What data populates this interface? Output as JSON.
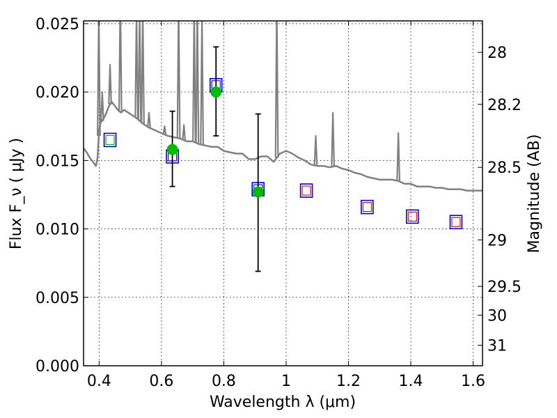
{
  "chart_data": {
    "type": "scatter",
    "xlabel": "Wavelength  λ (μm)",
    "ylabel_left": "Flux  F_ν  ( μJy )",
    "ylabel_right": "Magnitude (AB)",
    "xlim": [
      0.35,
      1.63
    ],
    "ylim": [
      0.0,
      0.0252
    ],
    "grid": true,
    "x_ticks": [
      0.4,
      0.6,
      0.8,
      1.0,
      1.2,
      1.4,
      1.6
    ],
    "x_tick_labels": [
      "0.4",
      "0.6",
      "0.8",
      "1",
      "1.2",
      "1.4",
      "1.6"
    ],
    "y_ticks": [
      0.0,
      0.005,
      0.01,
      0.015,
      0.02,
      0.025
    ],
    "y_tick_labels": [
      "0.000",
      "0.005",
      "0.010",
      "0.015",
      "0.020",
      "0.025"
    ],
    "right_ticks": [
      {
        "label": "28",
        "flux": 0.0229
      },
      {
        "label": "28.2",
        "flux": 0.0191
      },
      {
        "label": "28.5",
        "flux": 0.0145
      },
      {
        "label": "29",
        "flux": 0.0092
      },
      {
        "label": "29.5",
        "flux": 0.0058
      },
      {
        "label": "30",
        "flux": 0.0037
      },
      {
        "label": "31",
        "flux": 0.0015
      }
    ],
    "series": [
      {
        "kind": "template_spectrum",
        "color": "#808080",
        "x": [
          0.35,
          0.36,
          0.37,
          0.38,
          0.39,
          0.395,
          0.4,
          0.405,
          0.41,
          0.42,
          0.43,
          0.44,
          0.45,
          0.46,
          0.47,
          0.48,
          0.5,
          0.52,
          0.54,
          0.56,
          0.58,
          0.6,
          0.62,
          0.64,
          0.66,
          0.68,
          0.7,
          0.72,
          0.74,
          0.76,
          0.78,
          0.8,
          0.82,
          0.84,
          0.86,
          0.88,
          0.9,
          0.92,
          0.94,
          0.96,
          0.98,
          1.0,
          1.02,
          1.04,
          1.06,
          1.08,
          1.1,
          1.12,
          1.14,
          1.16,
          1.18,
          1.2,
          1.22,
          1.24,
          1.26,
          1.28,
          1.3,
          1.32,
          1.34,
          1.36,
          1.38,
          1.4,
          1.42,
          1.44,
          1.46,
          1.48,
          1.5,
          1.52,
          1.54,
          1.56,
          1.58,
          1.6,
          1.63
        ],
        "y": [
          0.0159,
          0.0156,
          0.0152,
          0.0149,
          0.0146,
          0.0152,
          0.0172,
          0.0178,
          0.0179,
          0.0183,
          0.0189,
          0.0193,
          0.019,
          0.0187,
          0.0185,
          0.0187,
          0.0184,
          0.0181,
          0.0177,
          0.0174,
          0.0172,
          0.017,
          0.0168,
          0.0167,
          0.0166,
          0.0164,
          0.0164,
          0.0162,
          0.0161,
          0.016,
          0.016,
          0.0157,
          0.0156,
          0.0155,
          0.0155,
          0.0151,
          0.0151,
          0.0153,
          0.0153,
          0.0149,
          0.0155,
          0.0157,
          0.0155,
          0.0152,
          0.015,
          0.0147,
          0.0146,
          0.0146,
          0.0145,
          0.0146,
          0.0144,
          0.0143,
          0.0141,
          0.014,
          0.0138,
          0.0137,
          0.0136,
          0.0136,
          0.0136,
          0.0135,
          0.0133,
          0.0133,
          0.0131,
          0.0131,
          0.0131,
          0.013,
          0.013,
          0.0129,
          0.0129,
          0.0129,
          0.0128,
          0.0128,
          0.0128
        ],
        "lines": [
          {
            "x": 0.399,
            "peak": 0.026
          },
          {
            "x": 0.41,
            "peak": 0.02
          },
          {
            "x": 0.435,
            "peak": 0.022
          },
          {
            "x": 0.468,
            "peak": 0.027
          },
          {
            "x": 0.52,
            "peak": 0.026
          },
          {
            "x": 0.53,
            "peak": 0.026
          },
          {
            "x": 0.54,
            "peak": 0.026
          },
          {
            "x": 0.56,
            "peak": 0.0185
          },
          {
            "x": 0.61,
            "peak": 0.0175
          },
          {
            "x": 0.655,
            "peak": 0.0265
          },
          {
            "x": 0.672,
            "peak": 0.0176
          },
          {
            "x": 0.705,
            "peak": 0.026
          },
          {
            "x": 0.715,
            "peak": 0.0265
          },
          {
            "x": 0.73,
            "peak": 0.0255
          },
          {
            "x": 0.97,
            "peak": 0.0265
          },
          {
            "x": 1.095,
            "peak": 0.0168
          },
          {
            "x": 1.15,
            "peak": 0.0185
          },
          {
            "x": 1.36,
            "peak": 0.017
          }
        ]
      },
      {
        "name": "",
        "kind": "model_open_squares",
        "edge_color": "#0000cc",
        "inner_edge_colors": [
          "#00aa00",
          "#0000cc",
          "#0000cc",
          "#0000cc",
          "#cc0000",
          "#cc0000",
          "#cc0000",
          "#cc0000"
        ],
        "x": [
          0.435,
          0.635,
          0.775,
          0.91,
          1.065,
          1.26,
          1.405,
          1.545
        ],
        "y": [
          0.0165,
          0.0153,
          0.0205,
          0.0129,
          0.0128,
          0.0116,
          0.0109,
          0.0105
        ]
      },
      {
        "name": "",
        "kind": "observed_points",
        "color": "#00bb00",
        "x": [
          0.635,
          0.775,
          0.91
        ],
        "y": [
          0.0158,
          0.02,
          0.0127
        ],
        "yerr_low": [
          0.0131,
          0.0168,
          0.0069
        ],
        "yerr_high": [
          0.0186,
          0.0233,
          0.0184
        ]
      }
    ]
  }
}
